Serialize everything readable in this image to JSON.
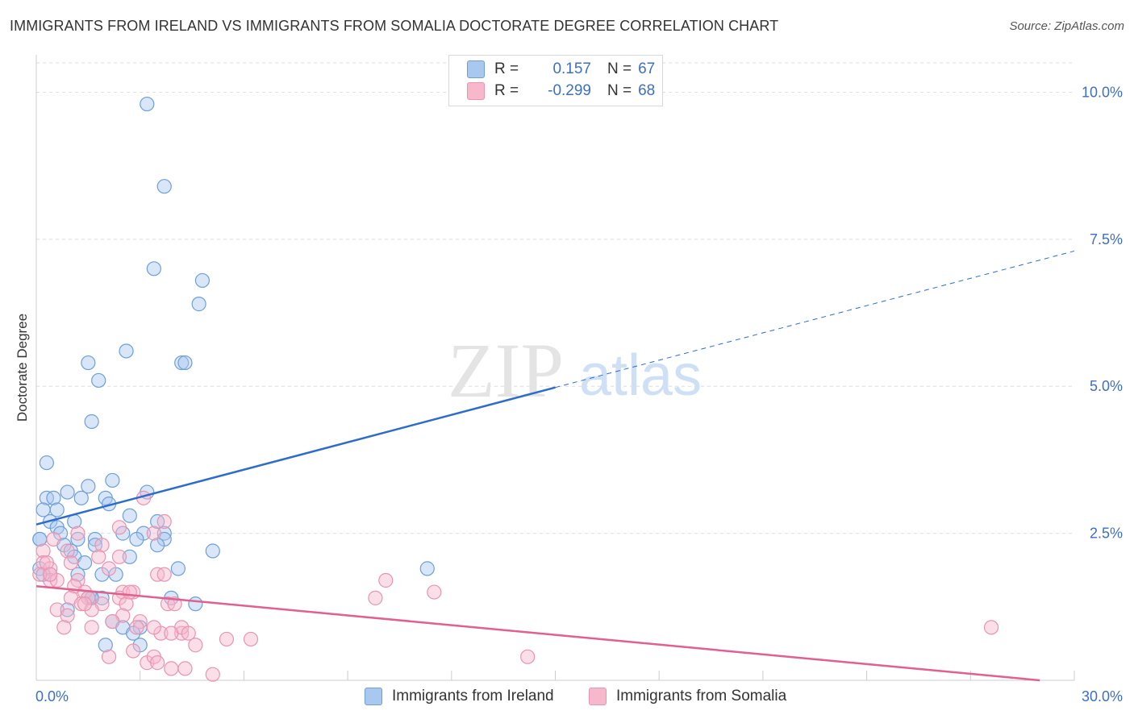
{
  "header": {
    "title": "IMMIGRANTS FROM IRELAND VS IMMIGRANTS FROM SOMALIA DOCTORATE DEGREE CORRELATION CHART",
    "source": "Source: ZipAtlas.com"
  },
  "watermark": {
    "zip": "ZIP",
    "atlas": "atlas"
  },
  "legend": {
    "rows": [
      {
        "r_label": "R =",
        "r_value": "0.157",
        "n_label": "N =",
        "n_value": "67"
      },
      {
        "r_label": "R =",
        "r_value": "-0.299",
        "n_label": "N =",
        "n_value": "68"
      }
    ]
  },
  "colors": {
    "ireland_fill": "#a9c8f0",
    "ireland_stroke": "#6e9fd9",
    "ireland_line": "#2d6cc9",
    "somalia_fill": "#f7b8cc",
    "somalia_stroke": "#e994b0",
    "somalia_line": "#e0608f",
    "axis_value": "#3d6fc4",
    "grid": "#dddddd"
  },
  "chart_data": {
    "type": "scatter",
    "title": "IMMIGRANTS FROM IRELAND VS IMMIGRANTS FROM SOMALIA DOCTORATE DEGREE CORRELATION CHART",
    "xlabel": "",
    "ylabel": "Doctorate Degree",
    "xlim": [
      0,
      30
    ],
    "ylim": [
      0,
      10.5
    ],
    "x_tick_labels": [
      "0.0%",
      "30.0%"
    ],
    "y_ticks": [
      2.5,
      5.0,
      7.5,
      10.0
    ],
    "y_tick_labels": [
      "2.5%",
      "5.0%",
      "7.5%",
      "10.0%"
    ],
    "grid": true,
    "legend_position": "bottom",
    "series": [
      {
        "name": "Immigrants from Ireland",
        "color": "#a9c8f0",
        "trend": {
          "x": [
            0.0,
            15.0,
            30.0
          ],
          "y": [
            2.65,
            4.98,
            7.3
          ],
          "dashed_from_x": 15.0
        },
        "points": [
          [
            3.2,
            9.8
          ],
          [
            3.7,
            8.4
          ],
          [
            3.4,
            7.0
          ],
          [
            4.8,
            6.8
          ],
          [
            4.7,
            6.4
          ],
          [
            2.6,
            5.6
          ],
          [
            1.5,
            5.4
          ],
          [
            4.2,
            5.4
          ],
          [
            4.3,
            5.4
          ],
          [
            1.8,
            5.1
          ],
          [
            1.6,
            4.4
          ],
          [
            0.3,
            3.7
          ],
          [
            2.2,
            3.4
          ],
          [
            1.5,
            3.3
          ],
          [
            3.2,
            3.2
          ],
          [
            0.9,
            3.2
          ],
          [
            0.3,
            3.1
          ],
          [
            0.5,
            3.1
          ],
          [
            1.3,
            3.1
          ],
          [
            2.0,
            3.1
          ],
          [
            2.1,
            3.0
          ],
          [
            0.6,
            2.9
          ],
          [
            0.2,
            2.9
          ],
          [
            2.7,
            2.8
          ],
          [
            0.4,
            2.7
          ],
          [
            3.5,
            2.7
          ],
          [
            1.1,
            2.7
          ],
          [
            0.6,
            2.6
          ],
          [
            0.7,
            2.5
          ],
          [
            2.5,
            2.5
          ],
          [
            3.1,
            2.5
          ],
          [
            3.7,
            2.5
          ],
          [
            2.9,
            2.4
          ],
          [
            3.7,
            2.4
          ],
          [
            1.2,
            2.4
          ],
          [
            0.1,
            2.4
          ],
          [
            0.1,
            2.4
          ],
          [
            1.7,
            2.4
          ],
          [
            3.5,
            2.3
          ],
          [
            1.7,
            2.3
          ],
          [
            0.8,
            2.3
          ],
          [
            1.0,
            2.2
          ],
          [
            5.1,
            2.2
          ],
          [
            2.7,
            2.1
          ],
          [
            1.1,
            2.1
          ],
          [
            1.4,
            2.0
          ],
          [
            4.1,
            1.9
          ],
          [
            11.3,
            1.9
          ],
          [
            0.1,
            1.9
          ],
          [
            0.4,
            1.8
          ],
          [
            1.2,
            1.8
          ],
          [
            2.3,
            1.8
          ],
          [
            1.9,
            1.8
          ],
          [
            0.2,
            1.8
          ],
          [
            1.6,
            1.4
          ],
          [
            1.5,
            1.4
          ],
          [
            1.9,
            1.4
          ],
          [
            3.9,
            1.4
          ],
          [
            4.6,
            1.3
          ],
          [
            0.9,
            1.2
          ],
          [
            2.2,
            1.0
          ],
          [
            2.5,
            0.9
          ],
          [
            3.0,
            0.9
          ],
          [
            2.8,
            0.8
          ],
          [
            2.0,
            0.6
          ],
          [
            3.0,
            0.6
          ],
          [
            1.6,
            1.4
          ]
        ]
      },
      {
        "name": "Immigrants from Somalia",
        "color": "#f7b8cc",
        "trend": {
          "x": [
            0.0,
            29.0
          ],
          "y": [
            1.6,
            0.0
          ]
        },
        "points": [
          [
            3.1,
            3.1
          ],
          [
            3.7,
            2.7
          ],
          [
            2.4,
            2.6
          ],
          [
            1.2,
            2.5
          ],
          [
            3.4,
            2.5
          ],
          [
            0.5,
            2.4
          ],
          [
            1.9,
            2.3
          ],
          [
            0.2,
            2.2
          ],
          [
            0.9,
            2.2
          ],
          [
            0.2,
            2.0
          ],
          [
            1.0,
            2.0
          ],
          [
            1.8,
            2.1
          ],
          [
            2.4,
            2.1
          ],
          [
            0.4,
            1.9
          ],
          [
            0.3,
            2.0
          ],
          [
            2.1,
            1.9
          ],
          [
            3.5,
            1.8
          ],
          [
            3.7,
            1.8
          ],
          [
            0.4,
            1.7
          ],
          [
            0.6,
            1.7
          ],
          [
            0.1,
            1.8
          ],
          [
            1.2,
            1.7
          ],
          [
            0.4,
            1.8
          ],
          [
            2.5,
            1.5
          ],
          [
            2.8,
            1.5
          ],
          [
            10.1,
            1.7
          ],
          [
            1.1,
            1.6
          ],
          [
            1.4,
            1.5
          ],
          [
            1.0,
            1.4
          ],
          [
            1.5,
            1.4
          ],
          [
            2.4,
            1.4
          ],
          [
            2.6,
            1.3
          ],
          [
            3.8,
            1.3
          ],
          [
            9.8,
            1.4
          ],
          [
            11.5,
            1.5
          ],
          [
            1.3,
            1.3
          ],
          [
            1.9,
            1.3
          ],
          [
            0.6,
            1.2
          ],
          [
            0.9,
            1.1
          ],
          [
            1.6,
            1.2
          ],
          [
            2.5,
            1.1
          ],
          [
            3.0,
            1.0
          ],
          [
            1.6,
            0.9
          ],
          [
            2.9,
            0.9
          ],
          [
            3.6,
            0.8
          ],
          [
            4.2,
            0.8
          ],
          [
            4.2,
            0.9
          ],
          [
            4.4,
            0.8
          ],
          [
            3.9,
            0.8
          ],
          [
            4.6,
            0.6
          ],
          [
            5.5,
            0.7
          ],
          [
            6.2,
            0.7
          ],
          [
            3.4,
            0.9
          ],
          [
            2.1,
            0.4
          ],
          [
            2.8,
            0.5
          ],
          [
            3.2,
            0.3
          ],
          [
            3.4,
            0.4
          ],
          [
            3.5,
            0.3
          ],
          [
            3.9,
            0.2
          ],
          [
            4.3,
            0.2
          ],
          [
            5.1,
            0.1
          ],
          [
            14.2,
            0.4
          ],
          [
            27.6,
            0.9
          ],
          [
            2.7,
            1.5
          ],
          [
            1.4,
            1.3
          ],
          [
            0.8,
            0.9
          ],
          [
            2.2,
            1.0
          ],
          [
            4.0,
            1.3
          ]
        ]
      }
    ]
  },
  "bottom_legend": [
    {
      "label": "Immigrants from Ireland"
    },
    {
      "label": "Immigrants from Somalia"
    }
  ]
}
